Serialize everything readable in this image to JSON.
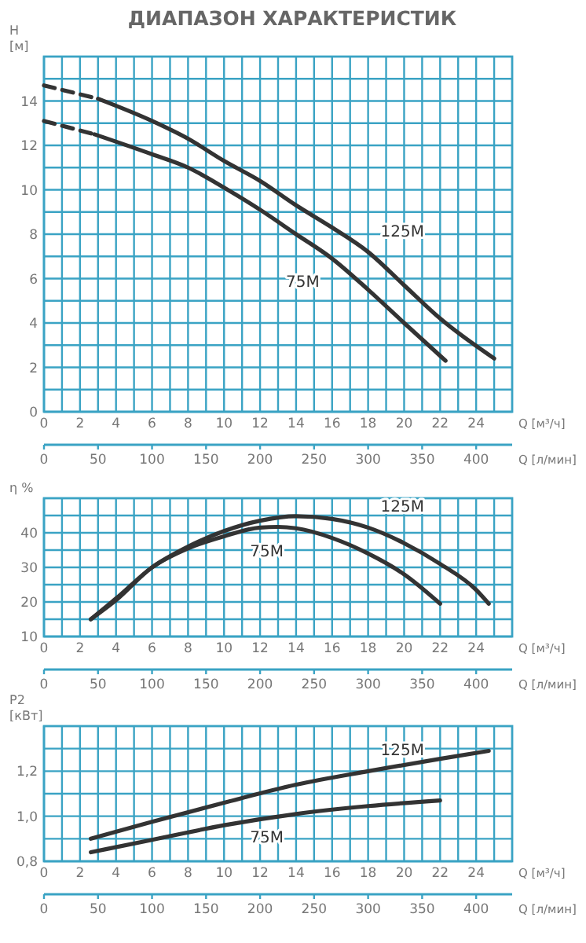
{
  "chart_data": [
    {
      "type": "line",
      "title": "ДИАПАЗОН ХАРАКТЕРИСТИК",
      "xlabel": "Q [м³/ч]",
      "x2label": "Q [л/мин]",
      "ylabel": "H [м]",
      "grid": true,
      "legend": false,
      "xlim": [
        0,
        26
      ],
      "xticks": [
        0,
        {
          "value": 1,
          "label": null
        },
        2,
        {
          "value": 3,
          "label": null
        },
        4,
        {
          "value": 5,
          "label": null
        },
        6,
        {
          "value": 7,
          "label": null
        },
        8,
        {
          "value": 9,
          "label": null
        },
        10,
        {
          "value": 11,
          "label": null
        },
        12,
        {
          "value": 13,
          "label": null
        },
        14,
        {
          "value": 15,
          "label": null
        },
        16,
        {
          "value": 17,
          "label": null
        },
        18,
        {
          "value": 19,
          "label": null
        },
        20,
        {
          "value": 21,
          "label": null
        },
        22,
        {
          "value": 23,
          "label": null
        },
        24,
        {
          "value": 25,
          "label": null
        }
      ],
      "x2lim": [
        0,
        433.33
      ],
      "x2ticks": [
        0,
        50,
        100,
        150,
        200,
        250,
        300,
        350,
        400
      ],
      "ylim": [
        0,
        16
      ],
      "yticks": [
        0,
        {
          "value": 1,
          "label": null
        },
        2,
        {
          "value": 3,
          "label": null
        },
        4,
        {
          "value": 5,
          "label": null
        },
        6,
        {
          "value": 7,
          "label": null
        },
        8,
        {
          "value": 9,
          "label": null
        },
        10,
        {
          "value": 11,
          "label": null
        },
        12,
        {
          "value": 13,
          "label": null
        },
        14,
        {
          "value": 15,
          "label": null
        }
      ],
      "series": [
        {
          "name": "125M",
          "color": "#333333",
          "line_style": "solid",
          "x": [
            3,
            6,
            8,
            10,
            12,
            14,
            16,
            18,
            20,
            22,
            25
          ],
          "values": [
            14.1,
            13.1,
            12.3,
            11.3,
            10.4,
            9.3,
            8.3,
            7.2,
            5.7,
            4.2,
            2.4
          ]
        },
        {
          "color": "#333333",
          "line_style": "dashed",
          "x": [
            0,
            3
          ],
          "values": [
            14.7,
            14.1
          ]
        },
        {
          "name": "75M",
          "color": "#333333",
          "line_style": "solid",
          "x": [
            2.8,
            6,
            8,
            10,
            12,
            14,
            16,
            18,
            20,
            22.3
          ],
          "values": [
            12.5,
            11.6,
            11,
            10.1,
            9.1,
            8,
            6.9,
            5.5,
            4,
            2.3
          ]
        },
        {
          "color": "#333333",
          "line_style": "dashed",
          "x": [
            0,
            2.8
          ],
          "values": [
            13.1,
            12.5
          ]
        }
      ]
    },
    {
      "type": "line",
      "xlabel": "Q [м³/ч]",
      "x2label": "Q [л/мин]",
      "ylabel": "η %",
      "grid": true,
      "legend": false,
      "xlim": [
        0,
        26
      ],
      "xticks": [
        0,
        {
          "value": 1,
          "label": null
        },
        2,
        {
          "value": 3,
          "label": null
        },
        4,
        {
          "value": 5,
          "label": null
        },
        6,
        {
          "value": 7,
          "label": null
        },
        8,
        {
          "value": 9,
          "label": null
        },
        10,
        {
          "value": 11,
          "label": null
        },
        12,
        {
          "value": 13,
          "label": null
        },
        14,
        {
          "value": 15,
          "label": null
        },
        16,
        {
          "value": 17,
          "label": null
        },
        18,
        {
          "value": 19,
          "label": null
        },
        20,
        {
          "value": 21,
          "label": null
        },
        22,
        {
          "value": 23,
          "label": null
        },
        24,
        {
          "value": 25,
          "label": null
        }
      ],
      "x2lim": [
        0,
        433.33
      ],
      "x2ticks": [
        0,
        50,
        100,
        150,
        200,
        250,
        300,
        350,
        400
      ],
      "ylim": [
        10,
        50
      ],
      "yticks": [
        10,
        {
          "value": 15,
          "label": null
        },
        20,
        {
          "value": 25,
          "label": null
        },
        30,
        {
          "value": 35,
          "label": null
        },
        40,
        {
          "value": 45,
          "label": null
        }
      ],
      "series": [
        {
          "name": "125M",
          "color": "#333333",
          "line_style": "solid",
          "x": [
            2.6,
            4,
            6,
            8,
            10,
            12,
            14,
            16,
            18,
            20,
            22,
            24,
            24.7
          ],
          "values": [
            15,
            21,
            30,
            36,
            40.5,
            43.5,
            44.8,
            44,
            41.5,
            37,
            31,
            23.5,
            19.5
          ]
        },
        {
          "name": "75M",
          "color": "#333333",
          "line_style": "solid",
          "x": [
            2.6,
            4,
            6,
            8,
            10,
            12,
            13,
            14,
            16,
            18,
            20,
            22
          ],
          "values": [
            15,
            20.5,
            30,
            35.5,
            39,
            41.5,
            41.7,
            41.3,
            38.5,
            34,
            28,
            19.5
          ]
        }
      ]
    },
    {
      "type": "line",
      "xlabel": "Q [м³/ч]",
      "x2label": "Q [л/мин]",
      "ylabel": "P2 [кВт]",
      "grid": true,
      "legend": false,
      "xlim": [
        0,
        26
      ],
      "xticks": [
        0,
        {
          "value": 1,
          "label": null
        },
        2,
        {
          "value": 3,
          "label": null
        },
        4,
        {
          "value": 5,
          "label": null
        },
        6,
        {
          "value": 7,
          "label": null
        },
        8,
        {
          "value": 9,
          "label": null
        },
        10,
        {
          "value": 11,
          "label": null
        },
        12,
        {
          "value": 13,
          "label": null
        },
        14,
        {
          "value": 15,
          "label": null
        },
        16,
        {
          "value": 17,
          "label": null
        },
        18,
        {
          "value": 19,
          "label": null
        },
        20,
        {
          "value": 21,
          "label": null
        },
        22,
        {
          "value": 23,
          "label": null
        },
        24,
        {
          "value": 25,
          "label": null
        }
      ],
      "x2lim": [
        0,
        433.33
      ],
      "x2ticks": [
        0,
        50,
        100,
        150,
        200,
        250,
        300,
        350,
        400
      ],
      "ylim": [
        0.8,
        1.4
      ],
      "yticks": [
        {
          "value": 0.8,
          "label": "0,8"
        },
        {
          "value": 0.9,
          "label": null
        },
        {
          "value": 1.0,
          "label": "1,0"
        },
        {
          "value": 1.1,
          "label": null
        },
        {
          "value": 1.2,
          "label": "1,2"
        },
        {
          "value": 1.3,
          "label": null
        }
      ],
      "series": [
        {
          "name": "125M",
          "color": "#333333",
          "line_style": "solid",
          "x": [
            2.6,
            6,
            10,
            14,
            18,
            22,
            24.7
          ],
          "values": [
            0.9,
            0.975,
            1.06,
            1.14,
            1.2,
            1.255,
            1.29
          ]
        },
        {
          "name": "75M",
          "color": "#333333",
          "line_style": "solid",
          "x": [
            2.6,
            6,
            10,
            14,
            18,
            22
          ],
          "values": [
            0.84,
            0.895,
            0.96,
            1.01,
            1.045,
            1.07
          ]
        }
      ]
    }
  ]
}
